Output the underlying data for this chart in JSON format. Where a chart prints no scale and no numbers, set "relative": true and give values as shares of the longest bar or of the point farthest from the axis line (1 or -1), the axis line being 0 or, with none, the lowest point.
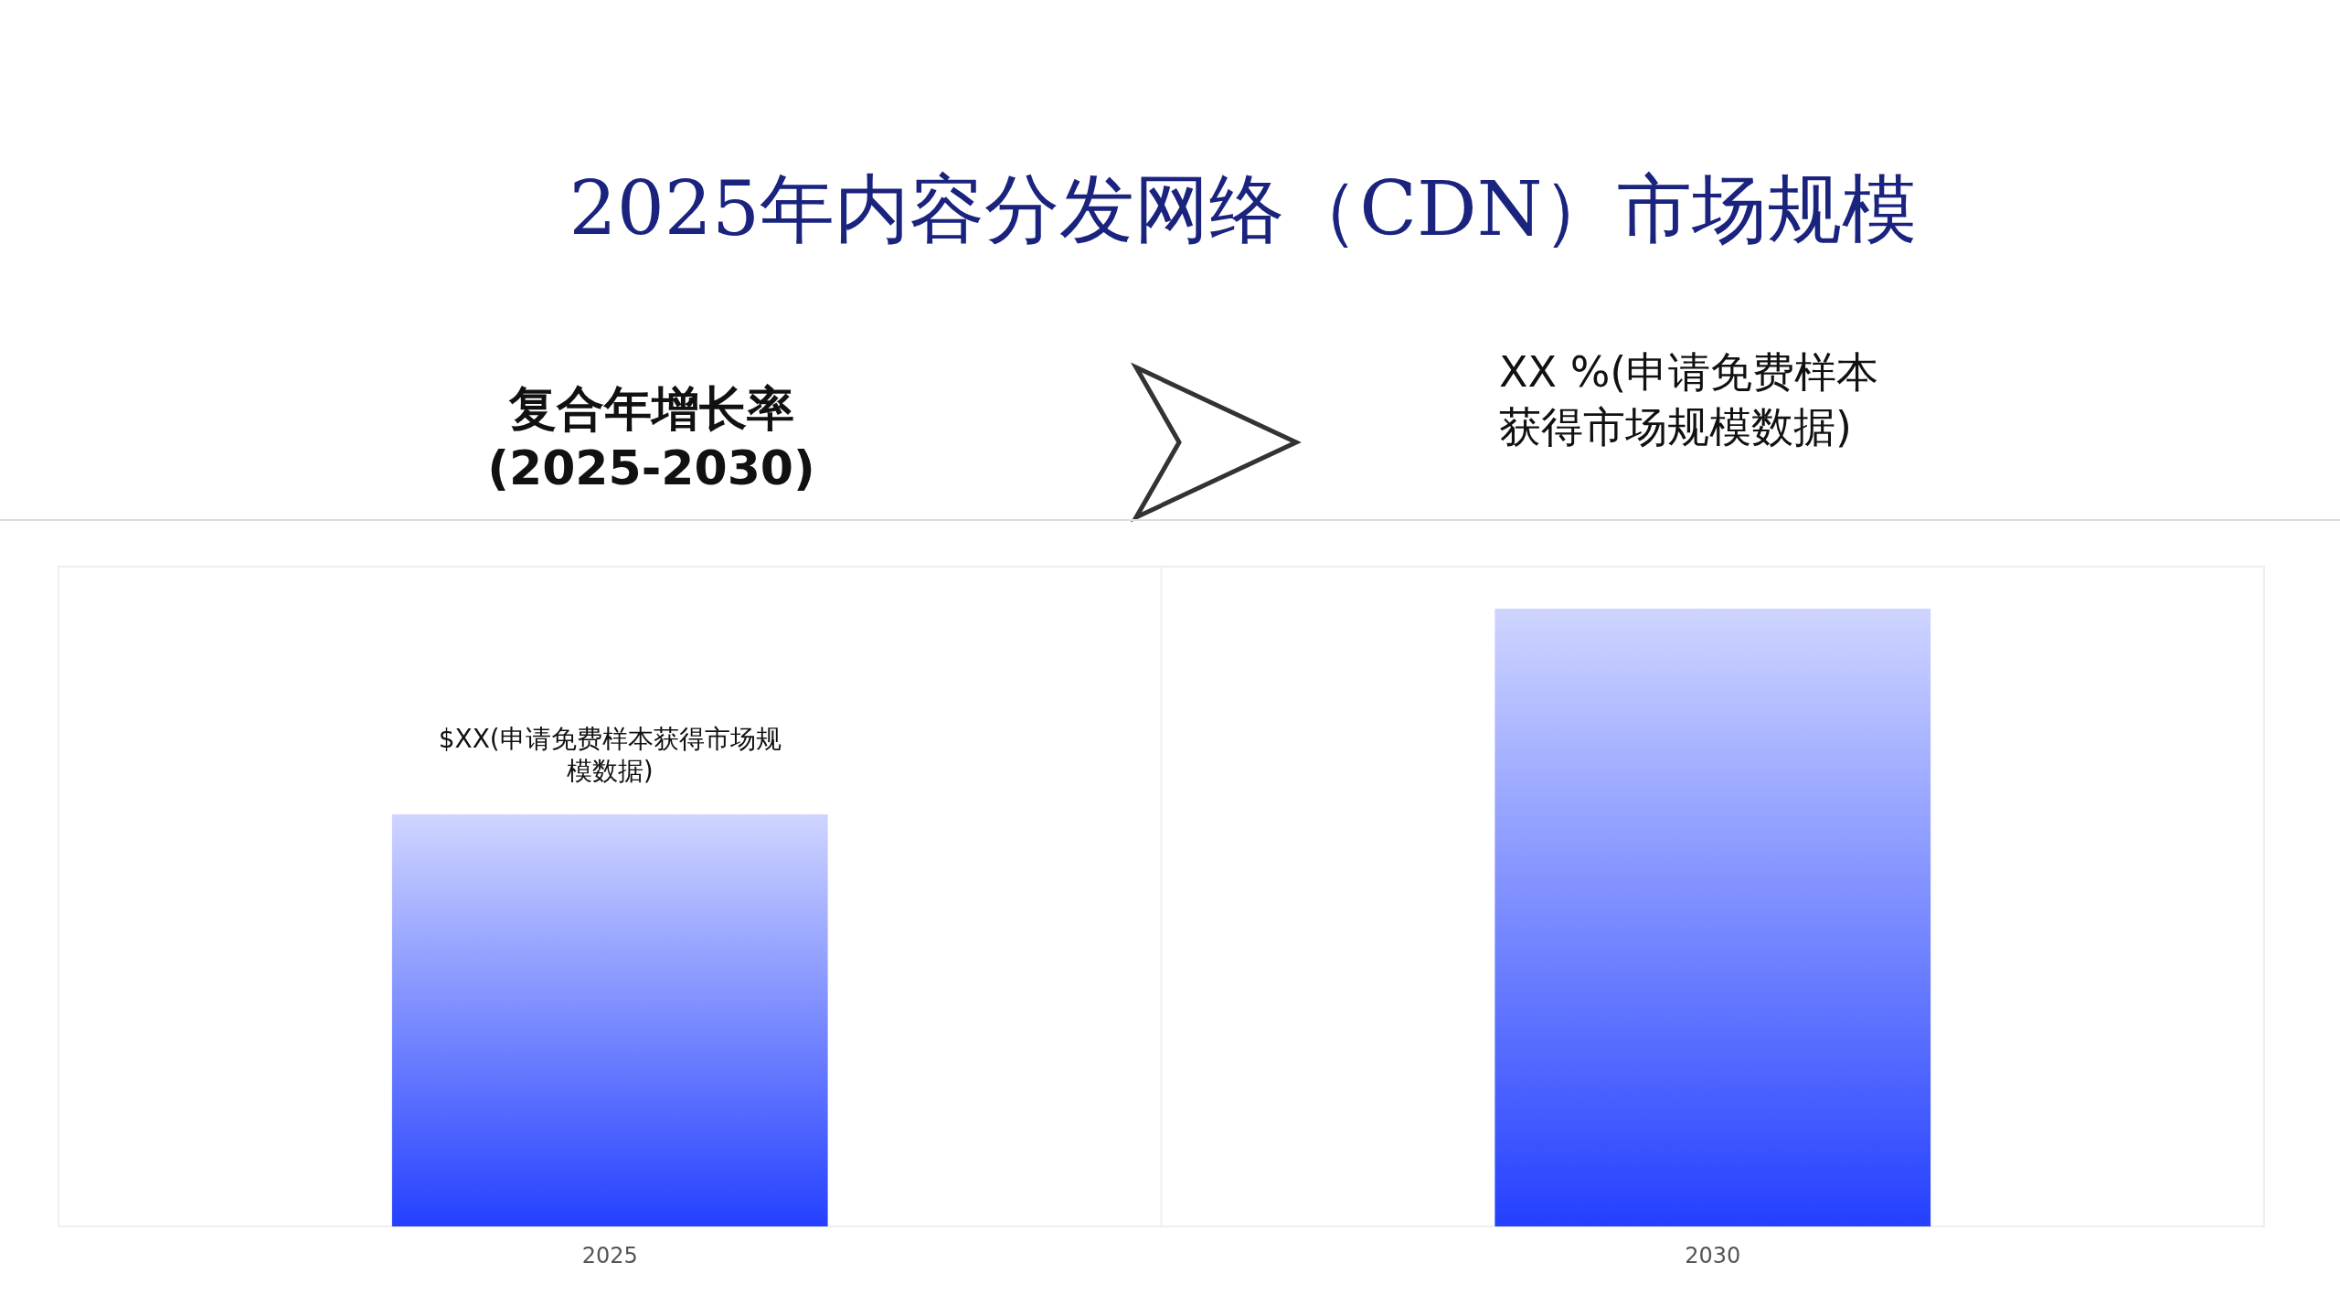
{
  "chart_data": {
    "type": "bar",
    "title": "2025年内容分发网络（CDN）市场规模",
    "relative": true,
    "categories": [
      "2025",
      "2030"
    ],
    "values": [
      0.667,
      1
    ],
    "color": "#2440ff",
    "annotations": [
      "复合年增长率 (2025-2030)",
      "XX %(申请免费样本获得市场规模数据)",
      {
        "text": "$XX(申请免费样本获得市场规模数据)",
        "x": "2025",
        "y": 0.667
      }
    ]
  }
}
